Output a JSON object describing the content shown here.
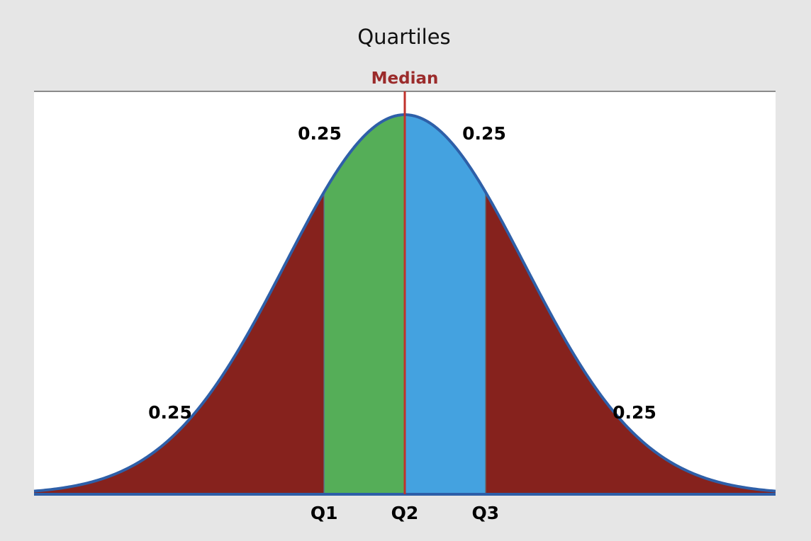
{
  "chart_data": {
    "type": "area",
    "title": "Quartiles",
    "distribution": "normal",
    "x_range": [
      -3.1,
      3.1
    ],
    "median_line_label": "Median",
    "quartile_positions": [
      -0.6745,
      0,
      0.6745
    ],
    "regions": [
      {
        "from": -3.1,
        "to": -0.6745,
        "proportion": "0.25",
        "color": "#86221d"
      },
      {
        "from": -0.6745,
        "to": 0,
        "proportion": "0.25",
        "color": "#55ae58"
      },
      {
        "from": 0,
        "to": 0.6745,
        "proportion": "0.25",
        "color": "#44a2e0"
      },
      {
        "from": 0.6745,
        "to": 3.1,
        "proportion": "0.25",
        "color": "#86221d"
      }
    ],
    "tick_labels": [
      "Q1",
      "Q2",
      "Q3"
    ],
    "area_labels": [
      "0.25",
      "0.25",
      "0.25",
      "0.25"
    ],
    "curve_color": "#2e5fa8",
    "median_color": "#c0322b",
    "grid": false,
    "legend": "none"
  }
}
